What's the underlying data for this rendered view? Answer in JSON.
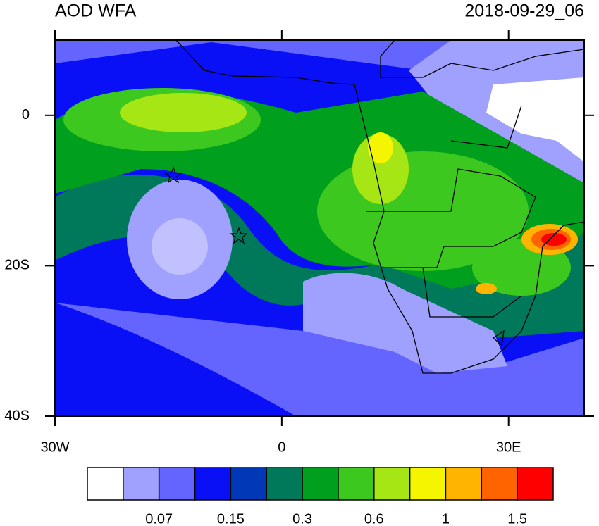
{
  "chart_data": {
    "type": "map",
    "title": "AOD WFA",
    "subtitle": "2018-09-29_06",
    "xlim": [
      -30,
      40
    ],
    "ylim": [
      -40,
      10
    ],
    "xticks": [
      {
        "value": -30,
        "label": "30W"
      },
      0,
      {
        "value": 30,
        "label": "30E"
      }
    ],
    "yticks": [
      0,
      {
        "value": -20,
        "label": "20S"
      },
      {
        "value": -40,
        "label": "40S"
      }
    ],
    "colorbar": {
      "colors": [
        "#ffffff",
        "#a0a0ff",
        "#6464ff",
        "#0a10f5",
        "#0038b8",
        "#00785a",
        "#00a01e",
        "#3cc81e",
        "#a6e614",
        "#f5f500",
        "#ffb400",
        "#ff6400",
        "#ff0000"
      ],
      "ticks": [
        0.07,
        0.15,
        0.3,
        0.6,
        1,
        1.5
      ]
    }
  }
}
